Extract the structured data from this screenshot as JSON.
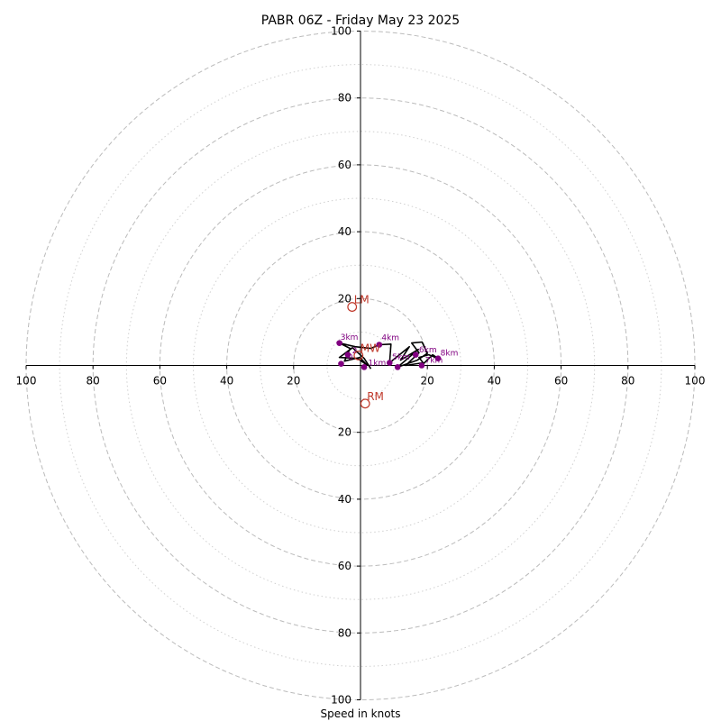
{
  "chart_data": {
    "type": "scatter",
    "title": "PABR 06Z - Friday May 23 2025",
    "xlabel": "Speed in knots",
    "units": "knots",
    "range": [
      -100,
      100
    ],
    "rings_major": [
      20,
      40,
      60,
      80,
      100
    ],
    "rings_minor": [
      10,
      30,
      50,
      70,
      90
    ],
    "tick_labels": {
      "top": [
        "20",
        "40",
        "60",
        "80",
        "100"
      ],
      "bottom": [
        "20",
        "40",
        "60",
        "80",
        "100"
      ],
      "left": [
        "100",
        "80",
        "60",
        "40",
        "20"
      ],
      "right": [
        "20",
        "40",
        "60",
        "80",
        "100"
      ]
    },
    "grid": true,
    "colors": {
      "trace": "#000000",
      "height_points": "#800080",
      "motion": "#c0392b",
      "grid": "#bbbbbb"
    },
    "trace_points": [
      [
        3.1,
        -1.0
      ],
      [
        1.1,
        2.1
      ],
      [
        -2.4,
        5.3
      ],
      [
        -6.3,
        2.4
      ],
      [
        -0.9,
        2.1
      ],
      [
        1.9,
        0.2
      ],
      [
        -0.2,
        2.4
      ],
      [
        -4.8,
        1.3
      ],
      [
        -3.1,
        5.1
      ],
      [
        -6.3,
        6.7
      ],
      [
        -1.6,
        5.6
      ],
      [
        3.1,
        5.1
      ],
      [
        5.6,
        6.2
      ],
      [
        9.1,
        6.4
      ],
      [
        8.7,
        0.8
      ],
      [
        14.6,
        5.6
      ],
      [
        12.0,
        1.6
      ],
      [
        17.3,
        4.8
      ],
      [
        11.1,
        -0.5
      ],
      [
        17.0,
        1.6
      ],
      [
        20.0,
        3.6
      ],
      [
        18.4,
        7.0
      ],
      [
        15.3,
        6.7
      ],
      [
        17.5,
        3.8
      ],
      [
        13.5,
        0.0
      ],
      [
        18.7,
        0.8
      ],
      [
        17.5,
        2.4
      ],
      [
        20.4,
        3.2
      ],
      [
        23.2,
        2.1
      ],
      [
        21.6,
        3.2
      ],
      [
        18.3,
        0.0
      ]
    ],
    "height_points": [
      {
        "label": "",
        "u": -3.8,
        "v": 3.2
      },
      {
        "label": "",
        "u": -6.3,
        "v": 6.7
      },
      {
        "label": "",
        "u": -5.8,
        "v": 0.5
      },
      {
        "label": "",
        "u": 1.1,
        "v": -0.5
      },
      {
        "label": "",
        "u": 5.6,
        "v": 6.2
      },
      {
        "label": "",
        "u": 8.7,
        "v": 0.8
      },
      {
        "label": "",
        "u": 11.1,
        "v": -0.5
      },
      {
        "label": "",
        "u": 16.5,
        "v": 3.2
      },
      {
        "label": "",
        "u": 18.3,
        "v": 0.0
      },
      {
        "label": "",
        "u": 23.2,
        "v": 2.1
      }
    ],
    "height_labels": [
      {
        "text": "3km",
        "u": -6.0,
        "v": 7.7
      },
      {
        "text": "4km",
        "u": 6.3,
        "v": 7.5
      },
      {
        "text": "1km",
        "u": 2.3,
        "v": 0.0
      },
      {
        "text": "5km",
        "u": 9.5,
        "v": 1.8
      },
      {
        "text": "6km",
        "u": 17.5,
        "v": 3.9
      },
      {
        "text": "7km",
        "u": 19.3,
        "v": 0.8
      },
      {
        "text": "8km",
        "u": 23.9,
        "v": 2.9
      },
      {
        "text": "2",
        "u": -2.5,
        "v": 3.7
      },
      {
        "text": "0",
        "u": -3.8,
        "v": 1.8
      }
    ],
    "storm_motion": [
      {
        "label": "LM",
        "u": -2.5,
        "v": 17.5
      },
      {
        "label": "RM",
        "u": 1.4,
        "v": -11.4
      },
      {
        "label": "MW",
        "u": -0.6,
        "v": 3.0
      }
    ]
  }
}
